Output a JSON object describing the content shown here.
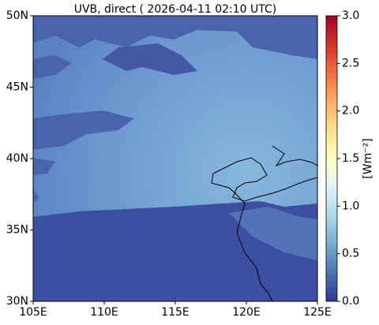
{
  "chart_data": {
    "type": "map",
    "title": "UVB, direct ( 2026-04-11 02:10 UTC)",
    "xlim": [
      105,
      125
    ],
    "xticks": [
      {
        "value": 105,
        "label": "105E"
      },
      {
        "value": 110,
        "label": "110E"
      },
      {
        "value": 115,
        "label": "115E"
      },
      {
        "value": 120,
        "label": "120E"
      },
      {
        "value": 125,
        "label": "125E"
      }
    ],
    "ylim": [
      30,
      50
    ],
    "yticks": [
      {
        "value": 30,
        "label": "30N"
      },
      {
        "value": 35,
        "label": "35N"
      },
      {
        "value": 40,
        "label": "40N"
      },
      {
        "value": 45,
        "label": "45N"
      },
      {
        "value": 50,
        "label": "50N"
      }
    ],
    "colorbar": {
      "label": "[Wm⁻²]",
      "lim": [
        0,
        3
      ],
      "ticks": [
        {
          "value": 0,
          "label": "0.0"
        },
        {
          "value": 0.5,
          "label": "0.5"
        },
        {
          "value": 1,
          "label": "1.0"
        },
        {
          "value": 1.5,
          "label": "1.5"
        },
        {
          "value": 2,
          "label": "2.0"
        },
        {
          "value": 2.5,
          "label": "2.5"
        },
        {
          "value": 3,
          "label": "3.0"
        }
      ]
    }
  }
}
